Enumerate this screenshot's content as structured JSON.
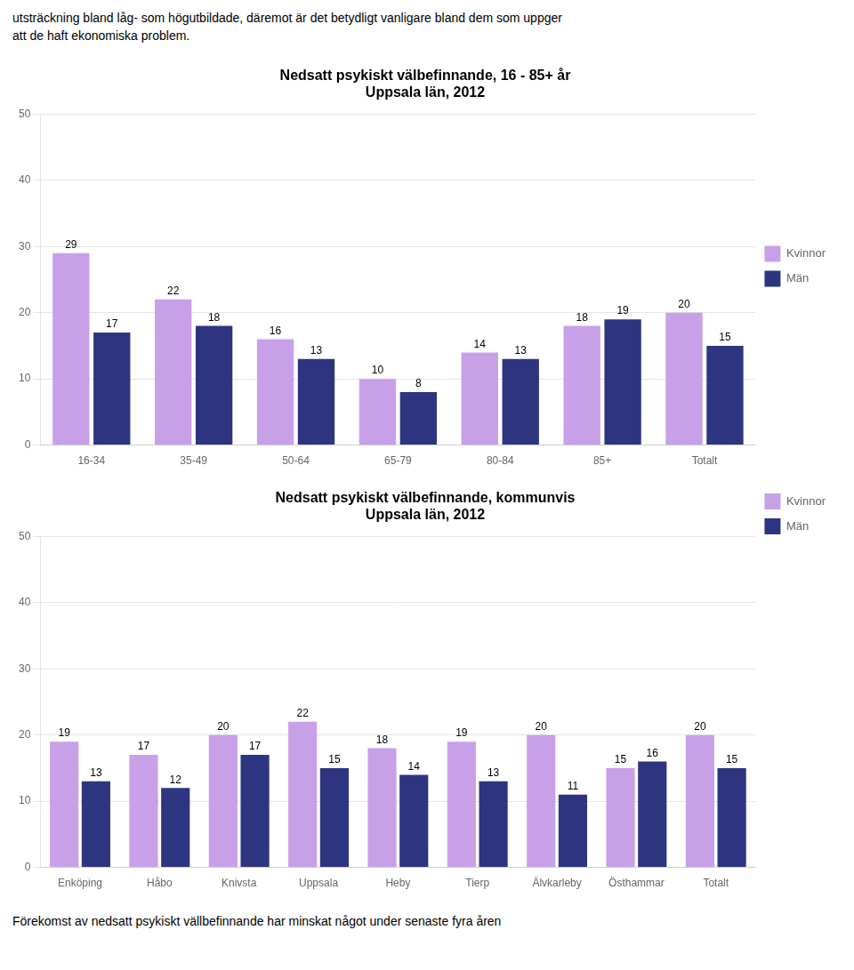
{
  "header": [
    "utsträckning bland låg- som högutbildade, däremot är det betydligt vanligare bland dem som uppger",
    "att de haft ekonomiska problem."
  ],
  "footer": "Förekomst av nedsatt psykiskt vällbefinnande har minskat något under senaste fyra åren",
  "chart_data": [
    {
      "type": "bar",
      "title": "Nedsatt psykiskt välbefinnande, 16 - 85+ år\nUppsala län, 2012",
      "categories": [
        "16-34",
        "35-49",
        "50-64",
        "65-79",
        "80-84",
        "85+",
        "Totalt"
      ],
      "series": [
        {
          "name": "Kvinnor",
          "color": "#c8a0e8",
          "values": [
            29,
            22,
            16,
            10,
            14,
            18,
            20
          ]
        },
        {
          "name": "Män",
          "color": "#2d3580",
          "values": [
            17,
            18,
            13,
            8,
            13,
            19,
            15
          ]
        }
      ],
      "ylim": [
        0,
        50
      ],
      "yticks": [
        0,
        10,
        20,
        30,
        40,
        50
      ],
      "grid": true,
      "legend": "right",
      "data_labels": true
    },
    {
      "type": "bar",
      "title": "Nedsatt psykiskt välbefinnande, kommunvis\nUppsala län, 2012",
      "categories": [
        "Enköping",
        "Håbo",
        "Knivsta",
        "Uppsala",
        "Heby",
        "Tierp",
        "Älvkarleby",
        "Östhammar",
        "Totalt"
      ],
      "series": [
        {
          "name": "Kvinnor",
          "color": "#c8a0e8",
          "values": [
            19,
            17,
            20,
            22,
            18,
            19,
            20,
            15,
            20
          ]
        },
        {
          "name": "Män",
          "color": "#2d3580",
          "values": [
            13,
            12,
            17,
            15,
            14,
            13,
            11,
            16,
            15
          ]
        }
      ],
      "ylim": [
        0,
        50
      ],
      "yticks": [
        0,
        10,
        20,
        30,
        40,
        50
      ],
      "grid": true,
      "legend": "upper right",
      "data_labels": true
    }
  ]
}
